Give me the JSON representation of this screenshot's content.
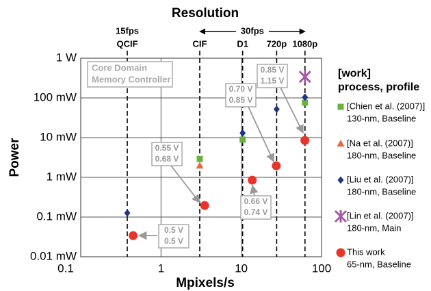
{
  "chart_data": {
    "type": "scatter",
    "title": "Resolution",
    "x_label": "Mpixels/s",
    "y_label": "Power",
    "log_x": true,
    "log_y": true,
    "grid": true,
    "xlim": [
      0.1,
      100
    ],
    "xticks": [
      0.1,
      1,
      10,
      100
    ],
    "ylim": [
      1e-05,
      1
    ],
    "yticks": [
      {
        "value": 1,
        "label": "1 W"
      },
      {
        "value": 0.1,
        "label": "100 mW"
      },
      {
        "value": 0.01,
        "label": "10 mW"
      },
      {
        "value": 0.001,
        "label": "1 mW"
      },
      {
        "value": 0.0001,
        "label": "0.1 mW"
      },
      {
        "value": 1e-05,
        "label": "0.01 mW"
      }
    ],
    "resolutions": [
      {
        "label": "QCIF",
        "value": 0.38
      },
      {
        "label": "CIF",
        "value": 3.04
      },
      {
        "label": "D1",
        "value": 10.4
      },
      {
        "label": "720p",
        "value": 27.6
      },
      {
        "label": "1080p",
        "value": 62.2
      }
    ],
    "frame_rates": [
      "15fps",
      "30fps"
    ],
    "legend_title": [
      "[work]",
      "process, profile"
    ],
    "box_note": [
      "Core Domain",
      "Memory Controller"
    ],
    "series": [
      {
        "name": "[Chien et al. (2007)]",
        "detail": "130-nm, Baseline",
        "color": "#6ab23e",
        "marker": "square",
        "x": [
          3.04,
          10.4,
          62.2
        ],
        "values": [
          0.0029,
          0.0089,
          0.076
        ]
      },
      {
        "name": "[Na et al. (2007)]",
        "detail": "180-nm, Baseline",
        "color": "#e8693a",
        "marker": "triangle",
        "x": [
          3.04
        ],
        "values": [
          0.00195
        ]
      },
      {
        "name": "[Liu et al. (2007)]",
        "detail": "180-nm, Baseline",
        "color": "#1f3585",
        "marker": "diamond",
        "x": [
          0.38,
          10.4,
          27.6,
          62.2
        ],
        "values": [
          0.000126,
          0.013,
          0.052,
          0.104
        ]
      },
      {
        "name": "[Lin et al. (2007)]",
        "detail": "180-nm, Main",
        "color": "#a55aa5",
        "marker": "star",
        "x": [
          62.2
        ],
        "values": [
          0.34
        ]
      },
      {
        "name": "This work",
        "detail": "65-nm, Baseline",
        "color": "#e8352a",
        "marker": "circle",
        "x": [
          0.45,
          3.5,
          13.7,
          27.3,
          62
        ],
        "values": [
          3.4e-05,
          0.000195,
          0.00085,
          0.00195,
          0.0085
        ]
      }
    ],
    "annotations": [
      [
        "0.5 V",
        "0.5 V"
      ],
      [
        "0.55 V",
        "0.68 V"
      ],
      [
        "0.66 V",
        "0.74 V"
      ],
      [
        "0.70 V",
        "0.85 V"
      ],
      [
        "0.85 V",
        "1.15 V"
      ]
    ]
  }
}
